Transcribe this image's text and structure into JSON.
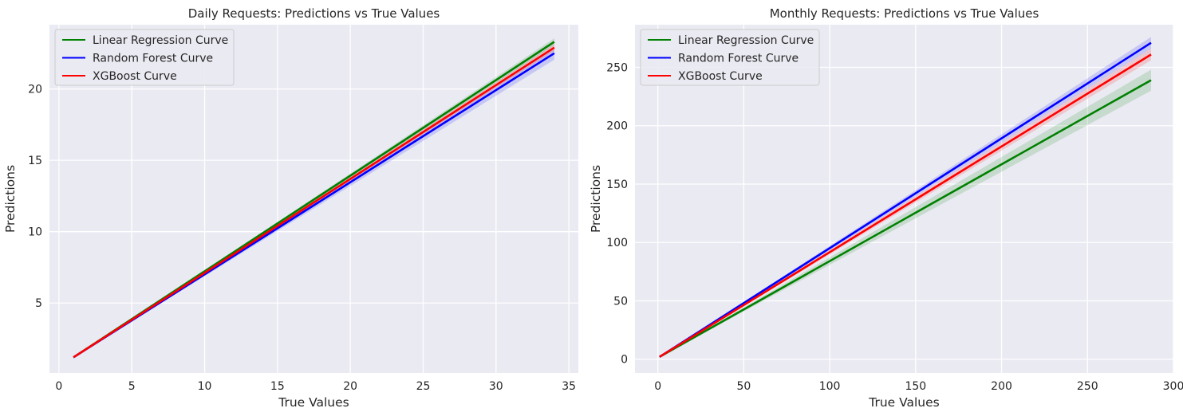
{
  "chart_data": [
    {
      "type": "line",
      "title": "Daily Requests: Predictions vs True Values",
      "xlabel": "True Values",
      "ylabel": "Predictions",
      "xlim": [
        -0.65,
        35.65
      ],
      "ylim": [
        0.1,
        24.5
      ],
      "xticks": [
        0,
        5,
        10,
        15,
        20,
        25,
        30,
        35
      ],
      "yticks": [
        5,
        10,
        15,
        20
      ],
      "grid": true,
      "legend": "top-left",
      "series": [
        {
          "name": "Linear Regression Curve",
          "color": "#008000",
          "x": [
            1,
            34
          ],
          "y": [
            1.2,
            23.3
          ],
          "band": 0.25
        },
        {
          "name": "Random Forest Curve",
          "color": "#0000ff",
          "x": [
            1,
            34
          ],
          "y": [
            1.2,
            22.5
          ],
          "band": 0.45
        },
        {
          "name": "XGBoost Curve",
          "color": "#ff0000",
          "x": [
            1,
            34
          ],
          "y": [
            1.2,
            22.9
          ],
          "band": 0.25
        }
      ]
    },
    {
      "type": "line",
      "title": "Monthly Requests: Predictions vs True Values",
      "xlabel": "True Values",
      "ylabel": "Predictions",
      "xlim": [
        -13.3,
        300
      ],
      "ylim": [
        -11.8,
        286.5
      ],
      "xticks": [
        0,
        50,
        100,
        150,
        200,
        250,
        300
      ],
      "yticks": [
        0,
        50,
        100,
        150,
        200,
        250
      ],
      "grid": true,
      "legend": "top-left",
      "series": [
        {
          "name": "Linear Regression Curve",
          "color": "#008000",
          "x": [
            1,
            287
          ],
          "y": [
            2,
            239
          ],
          "band": 9
        },
        {
          "name": "Random Forest Curve",
          "color": "#0000ff",
          "x": [
            1,
            287
          ],
          "y": [
            2,
            271
          ],
          "band": 5
        },
        {
          "name": "XGBoost Curve",
          "color": "#ff0000",
          "x": [
            1,
            287
          ],
          "y": [
            2,
            261
          ],
          "band": 5
        }
      ]
    }
  ]
}
